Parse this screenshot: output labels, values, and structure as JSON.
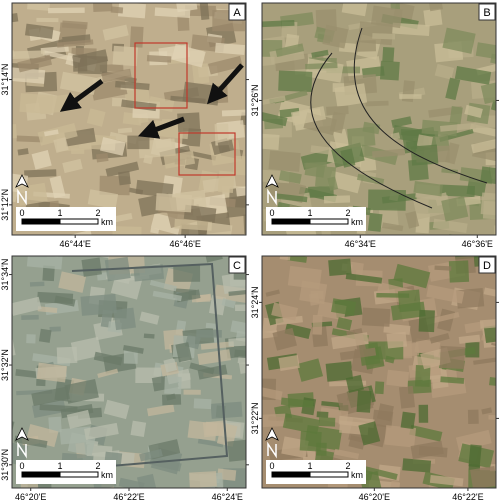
{
  "panels": [
    {
      "label": "A",
      "lat_labels": [
        "31°14'N",
        "31°12'N"
      ],
      "lon_labels": [
        "46°44'E",
        "46°46'E"
      ],
      "scale_labels": [
        "0",
        "1",
        "2"
      ],
      "scale_unit": "km"
    },
    {
      "label": "B",
      "lat_labels": [
        "31°26'N"
      ],
      "lon_labels": [
        "46°34'E",
        "46°36'E"
      ],
      "scale_labels": [
        "0",
        "1",
        "2"
      ],
      "scale_unit": "km"
    },
    {
      "label": "C",
      "lat_labels": [
        "31°34'N",
        "31°32'N",
        "31°30'N"
      ],
      "lon_labels": [
        "46°20'E",
        "46°22'E",
        "46°24'E"
      ],
      "scale_labels": [
        "0",
        "1",
        "2"
      ],
      "scale_unit": "km"
    },
    {
      "label": "D",
      "lat_labels": [
        "31°24'N",
        "31°22'N"
      ],
      "lon_labels": [
        "46°20'E",
        "46°22'E"
      ],
      "scale_labels": [
        "0",
        "1",
        "2"
      ],
      "scale_unit": "km"
    }
  ]
}
